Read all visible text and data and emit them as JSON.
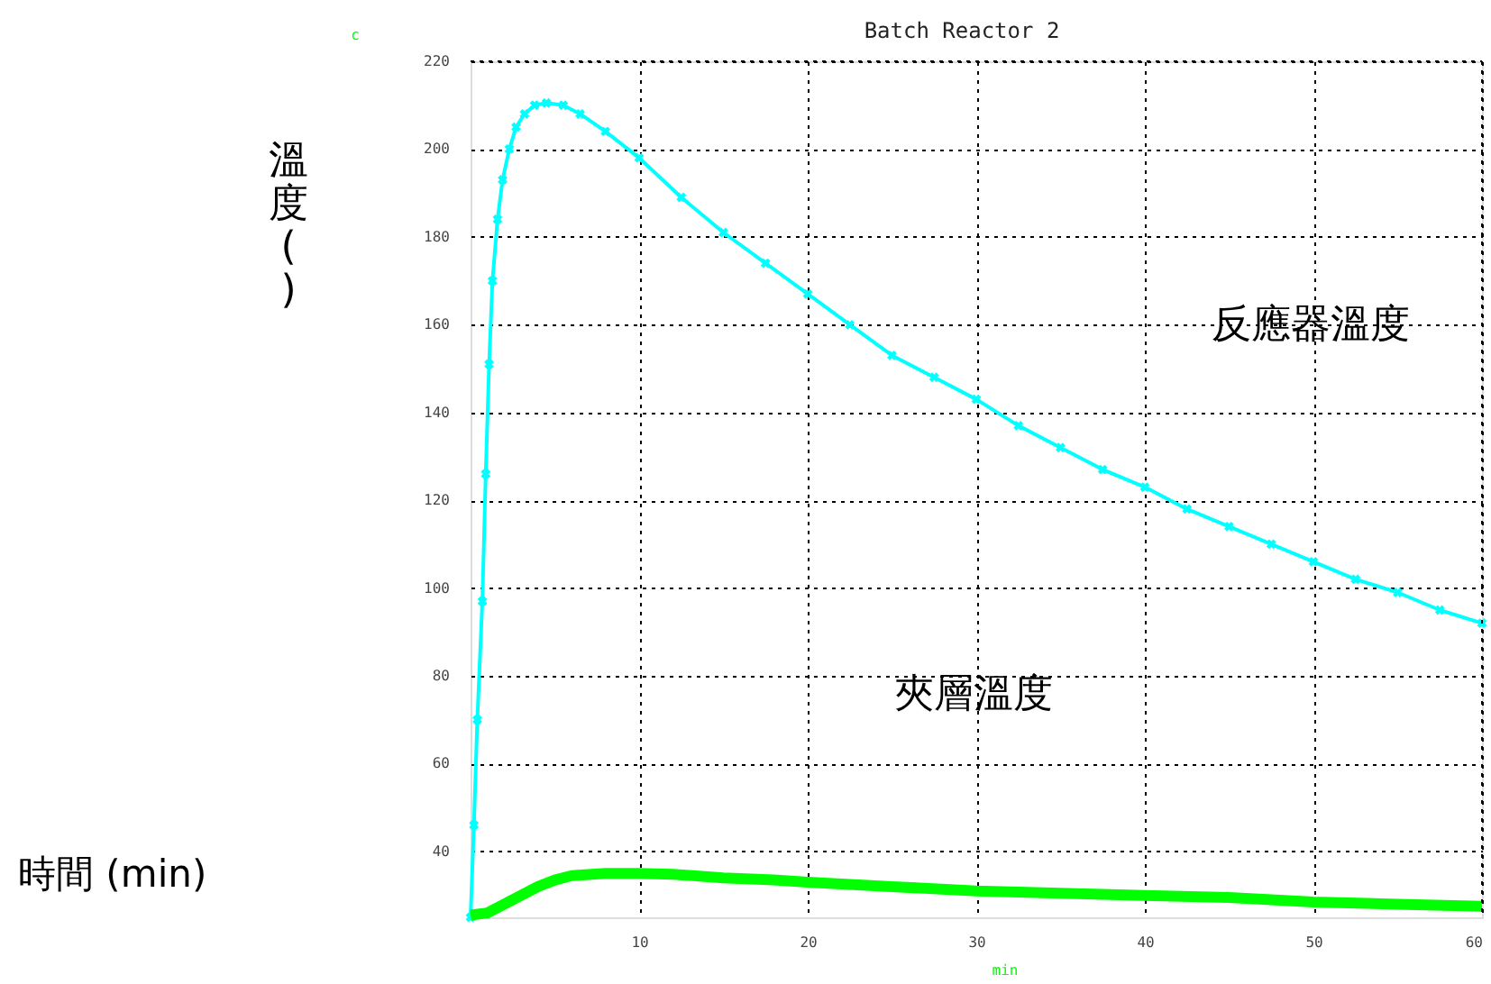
{
  "chart_data": {
    "type": "line",
    "title": "Batch Reactor 2",
    "xlabel": "min",
    "ylabel": "c",
    "xlim": [
      0,
      60
    ],
    "xticks": [
      10,
      20,
      30,
      40,
      50,
      60
    ],
    "ylim": [
      25,
      220
    ],
    "yticks": [
      40,
      60,
      80,
      100,
      120,
      140,
      160,
      180,
      200,
      220
    ],
    "grid": true,
    "series": [
      {
        "color": "#00ffff",
        "marker": "cross",
        "x": [
          0,
          0.2,
          0.4,
          0.7,
          0.9,
          1.1,
          1.3,
          1.6,
          1.9,
          2.3,
          2.7,
          3.2,
          3.8,
          4.5,
          5.5,
          6.5,
          8,
          10,
          12.5,
          15,
          17.5,
          20,
          22.5,
          25,
          27.5,
          30,
          32.5,
          35,
          37.5,
          40,
          42.5,
          45,
          47.5,
          50,
          52.5,
          55,
          57.5,
          60
        ],
        "values": [
          25,
          46,
          70,
          97,
          126,
          151,
          170,
          184,
          193,
          200,
          205,
          208,
          210,
          210.5,
          210,
          208,
          204,
          198,
          189,
          181,
          174,
          167,
          160,
          153,
          148,
          143,
          137,
          132,
          127,
          123,
          118,
          114,
          110,
          106,
          102,
          99,
          95,
          92
        ]
      },
      {
        "color": "#00ff00",
        "marker": "none",
        "x": [
          0,
          1,
          2,
          3,
          4,
          5,
          6,
          8,
          10,
          12,
          15,
          18,
          20,
          25,
          30,
          35,
          40,
          45,
          50,
          55,
          60
        ],
        "values": [
          25.5,
          26,
          28,
          30,
          32,
          33.5,
          34.5,
          35,
          35,
          34.8,
          34,
          33.5,
          33,
          32,
          31,
          30.5,
          30,
          29.5,
          28.5,
          28,
          27.5
        ]
      }
    ],
    "annotations": [
      "溫度( )",
      "時間 (min)",
      "反應器溫度",
      "夾層溫度"
    ]
  }
}
